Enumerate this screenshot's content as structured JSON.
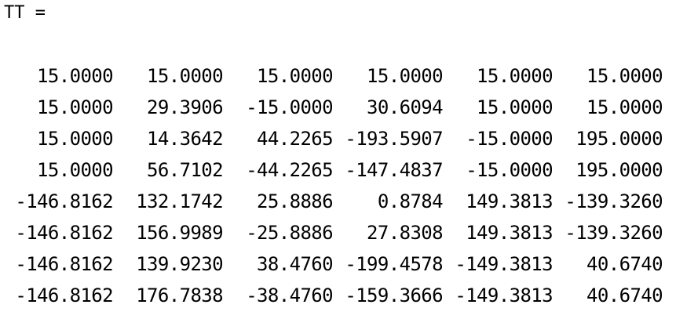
{
  "variable_header": "TT =",
  "matrix": {
    "rows": [
      [
        "15.0000",
        "15.0000",
        "15.0000",
        "15.0000",
        "15.0000",
        "15.0000"
      ],
      [
        "15.0000",
        "29.3906",
        "-15.0000",
        "30.6094",
        "15.0000",
        "15.0000"
      ],
      [
        "15.0000",
        "14.3642",
        "44.2265",
        "-193.5907",
        "-15.0000",
        "195.0000"
      ],
      [
        "15.0000",
        "56.7102",
        "-44.2265",
        "-147.4837",
        "-15.0000",
        "195.0000"
      ],
      [
        "-146.8162",
        "132.1742",
        "25.8886",
        "0.8784",
        "149.3813",
        "-139.3260"
      ],
      [
        "-146.8162",
        "156.9989",
        "-25.8886",
        "27.8308",
        "149.3813",
        "-139.3260"
      ],
      [
        "-146.8162",
        "139.9230",
        "38.4760",
        "-199.4578",
        "-149.3813",
        "40.6740"
      ],
      [
        "-146.8162",
        "176.7838",
        "-38.4760",
        "-159.3666",
        "-149.3813",
        "40.6740"
      ]
    ]
  }
}
